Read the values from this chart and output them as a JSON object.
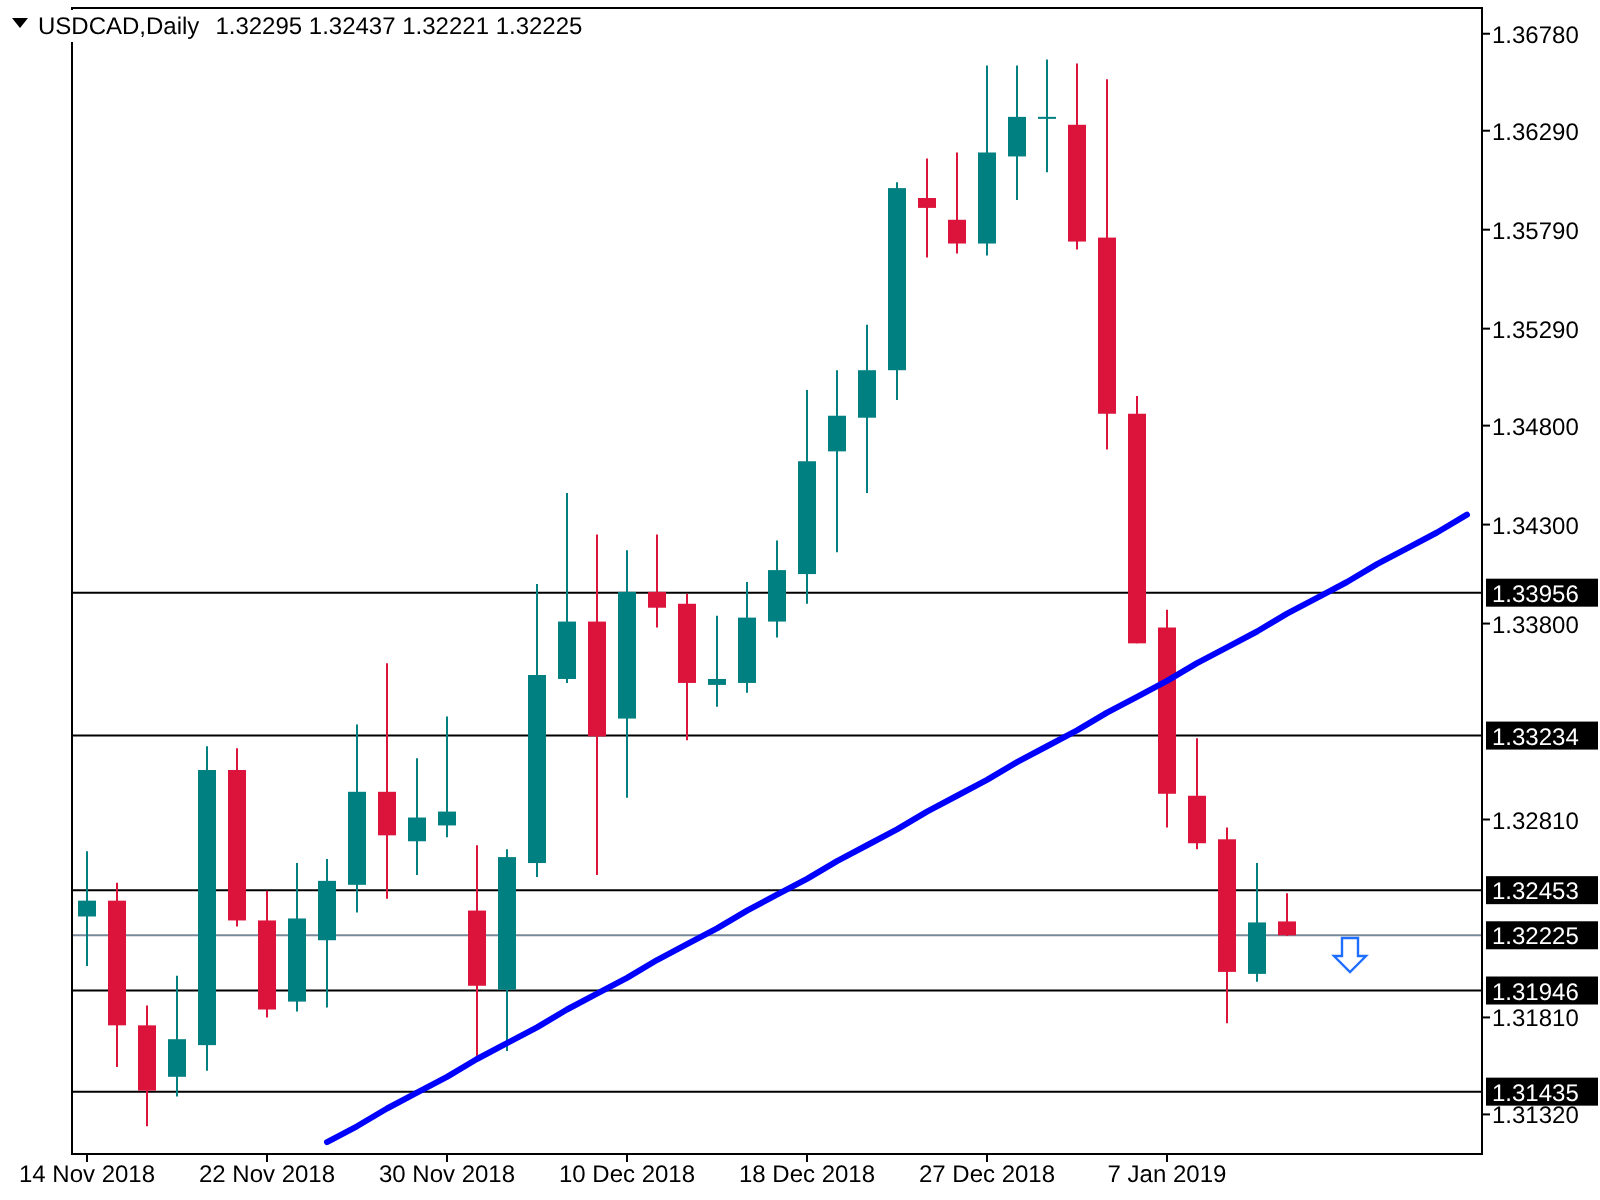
{
  "chart_data": {
    "type": "candlestick",
    "title": "USDCAD,Daily",
    "subtitle": "1.32295 1.32437 1.32221 1.32225",
    "categories": [
      "14 Nov 2018",
      null,
      null,
      null,
      null,
      null,
      "22 Nov 2018",
      null,
      null,
      null,
      null,
      null,
      "30 Nov 2018",
      null,
      null,
      null,
      null,
      null,
      "10 Dec 2018",
      null,
      null,
      null,
      null,
      null,
      "18 Dec 2018",
      null,
      null,
      null,
      null,
      null,
      "27 Dec 2018",
      null,
      null,
      null,
      null,
      null,
      "7 Jan 2019",
      null,
      null,
      null,
      null,
      null,
      null,
      null,
      null,
      null,
      null
    ],
    "ohlc": [
      [
        1.3232,
        1.3265,
        1.3207,
        1.324
      ],
      [
        1.324,
        1.3249,
        1.3156,
        1.3177
      ],
      [
        1.3177,
        1.3187,
        1.3126,
        1.3144
      ],
      [
        1.3151,
        1.3202,
        1.3141,
        1.317
      ],
      [
        1.3167,
        1.3318,
        1.3154,
        1.3306
      ],
      [
        1.3306,
        1.3317,
        1.3227,
        1.323
      ],
      [
        1.323,
        1.3245,
        1.3181,
        1.3185
      ],
      [
        1.3189,
        1.3259,
        1.3184,
        1.3231
      ],
      [
        1.322,
        1.3261,
        1.3186,
        1.325
      ],
      [
        1.3248,
        1.3329,
        1.3234,
        1.3295
      ],
      [
        1.3295,
        1.336,
        1.3241,
        1.3273
      ],
      [
        1.327,
        1.3312,
        1.3253,
        1.3282
      ],
      [
        1.3278,
        1.3333,
        1.3272,
        1.3285
      ],
      [
        1.3235,
        1.3268,
        1.3159,
        1.3197
      ],
      [
        1.3195,
        1.3266,
        1.3164,
        1.3262
      ],
      [
        1.3259,
        1.34,
        1.3252,
        1.3354
      ],
      [
        1.3352,
        1.3446,
        1.335,
        1.3381
      ],
      [
        1.3381,
        1.3425,
        1.3253,
        1.3323
      ],
      [
        1.3332,
        1.3417,
        1.3292,
        1.3396
      ],
      [
        1.3396,
        1.3425,
        1.3378,
        1.3388
      ],
      [
        1.339,
        1.3395,
        1.3321,
        1.335
      ],
      [
        1.3349,
        1.3384,
        1.3338,
        1.3352
      ],
      [
        1.335,
        1.3401,
        1.3345,
        1.3383
      ],
      [
        1.3381,
        1.3422,
        1.3373,
        1.3407
      ],
      [
        1.3405,
        1.3498,
        1.339,
        1.3462
      ],
      [
        1.3467,
        1.3508,
        1.3416,
        1.3485
      ],
      [
        1.3484,
        1.3531,
        1.3446,
        1.3508
      ],
      [
        1.3508,
        1.3603,
        1.3493,
        1.36
      ],
      [
        1.3595,
        1.3615,
        1.3565,
        1.359
      ],
      [
        1.3584,
        1.3618,
        1.3567,
        1.3572
      ],
      [
        1.3572,
        1.3662,
        1.3566,
        1.3618
      ],
      [
        1.3616,
        1.3662,
        1.3594,
        1.3636
      ],
      [
        1.3635,
        1.3665,
        1.3608,
        1.3636
      ],
      [
        1.3632,
        1.3663,
        1.3569,
        1.3573
      ],
      [
        1.3575,
        1.3655,
        1.3468,
        1.3486
      ],
      [
        1.3486,
        1.3495,
        1.337,
        1.337
      ],
      [
        1.3378,
        1.3387,
        1.3277,
        1.3294
      ],
      [
        1.3293,
        1.3322,
        1.3266,
        1.3269
      ],
      [
        1.3271,
        1.3277,
        1.3178,
        1.3204
      ],
      [
        1.3203,
        1.3259,
        1.3199,
        1.3229
      ],
      [
        1.32295,
        1.32437,
        1.32221,
        1.32225
      ],
      null,
      null,
      null,
      null,
      null,
      null
    ],
    "colors": [
      "#008080",
      "#dc143c",
      "#dc143c",
      "#008080",
      "#008080",
      "#dc143c",
      "#dc143c",
      "#008080",
      "#008080",
      "#008080",
      "#dc143c",
      "#008080",
      "#008080",
      "#dc143c",
      "#008080",
      "#008080",
      "#008080",
      "#dc143c",
      "#008080",
      "#dc143c",
      "#dc143c",
      "#008080",
      "#008080",
      "#008080",
      "#008080",
      "#008080",
      "#008080",
      "#008080",
      "#dc143c",
      "#dc143c",
      "#008080",
      "#008080",
      "#008080",
      "#dc143c",
      "#dc143c",
      "#dc143c",
      "#dc143c",
      "#dc143c",
      "#dc143c",
      "#008080",
      "#dc143c",
      null,
      null,
      null,
      null,
      null,
      null
    ],
    "series": [
      {
        "type": "line",
        "color": "#0000ff",
        "values": [
          null,
          null,
          null,
          null,
          null,
          null,
          null,
          null,
          1.3118,
          1.3126,
          1.3135,
          1.3143,
          1.3151,
          1.316,
          1.3168,
          1.3176,
          1.3185,
          1.3193,
          1.3201,
          1.321,
          1.3218,
          1.3226,
          1.3235,
          1.3243,
          1.3251,
          1.326,
          1.3268,
          1.3276,
          1.3285,
          1.3293,
          1.3301,
          1.331,
          1.3318,
          1.3326,
          1.3335,
          1.3343,
          1.3351,
          1.336,
          1.3368,
          1.3376,
          1.3385,
          1.3393,
          1.3401,
          1.341,
          1.3418,
          1.3426,
          1.3435
        ]
      }
    ],
    "ylim": [
      1.3112,
      1.3691
    ],
    "yticks": [
      {
        "value": 1.3678,
        "label": "1.36780"
      },
      {
        "value": 1.3629,
        "label": "1.36290"
      },
      {
        "value": 1.3579,
        "label": "1.35790"
      },
      {
        "value": 1.3529,
        "label": "1.35290"
      },
      {
        "value": 1.348,
        "label": "1.34800"
      },
      {
        "value": 1.343,
        "label": "1.34300"
      },
      {
        "value": 1.338,
        "label": "1.33800"
      },
      {
        "value": 1.3281,
        "label": "1.32810"
      },
      {
        "value": 1.3181,
        "label": "1.31810"
      },
      {
        "value": 1.3132,
        "label": "1.31320"
      }
    ],
    "ref_lines": [
      {
        "axis": "y",
        "value": 1.33956,
        "label": "1.33956",
        "color": "#000000"
      },
      {
        "axis": "y",
        "value": 1.33234,
        "label": "1.33234",
        "color": "#000000"
      },
      {
        "axis": "y",
        "value": 1.32453,
        "label": "1.32453",
        "color": "#000000"
      },
      {
        "axis": "y",
        "value": 1.32225,
        "label": "1.32225",
        "color": "#778899"
      },
      {
        "axis": "y",
        "value": 1.31946,
        "label": "1.31946",
        "color": "#000000"
      },
      {
        "axis": "y",
        "value": 1.31435,
        "label": "1.31435",
        "color": "#000000"
      }
    ]
  }
}
